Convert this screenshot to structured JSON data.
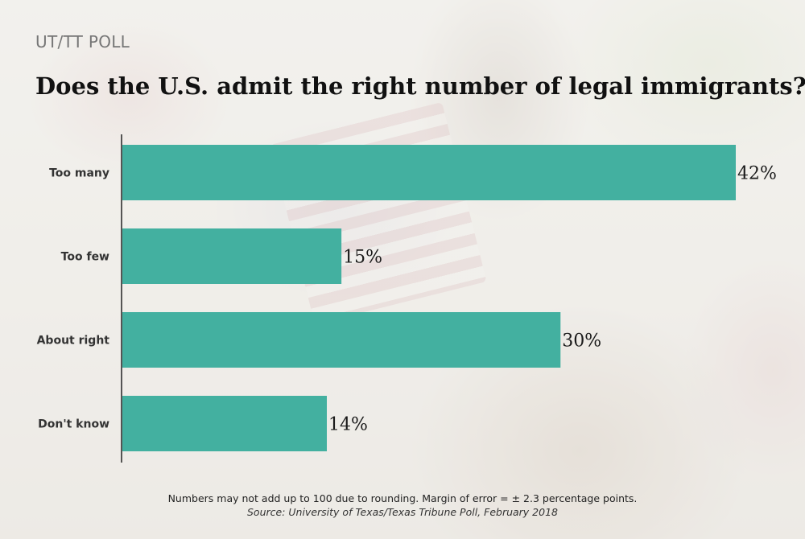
{
  "kicker": "UT/TT POLL",
  "title": "Does the U.S. admit the right number of legal immigrants?",
  "note": "Numbers may not add up to 100 due to rounding. Margin of error = ± 2.3 percentage points.",
  "source": "Source: University of Texas/Texas Tribune Poll, February 2018",
  "colors": {
    "bar": "#43b0a0",
    "axis": "#222222"
  },
  "chart_data": {
    "type": "bar",
    "orientation": "horizontal",
    "categories": [
      "Too many",
      "Too few",
      "About right",
      "Don't know"
    ],
    "values": [
      42,
      15,
      30,
      14
    ],
    "value_labels": [
      "42%",
      "15%",
      "30%",
      "14%"
    ],
    "xlim": [
      0,
      42
    ],
    "grid": false,
    "legend": "none"
  }
}
